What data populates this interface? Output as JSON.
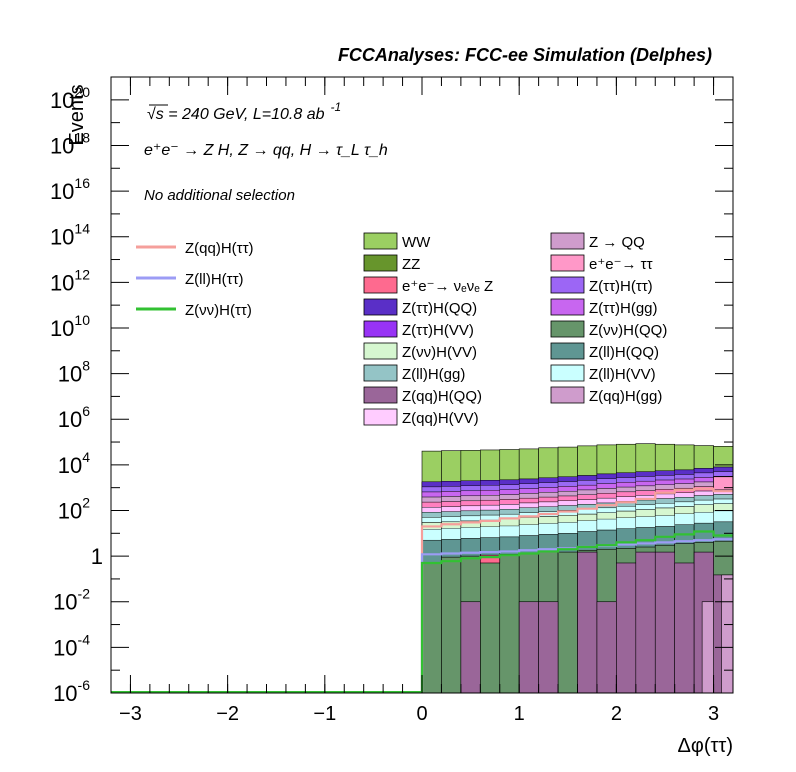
{
  "header": {
    "title": "FCCAnalyses: FCC-ee Simulation (Delphes)",
    "line_energy": "√s = 240 GeV, L=10.8 ab",
    "line_energy_exp": "-1",
    "line_process": "e⁺e⁻ → Z H, Z → qq, H → τ_L τ_h",
    "line_selection": "No additional selection"
  },
  "chart_data": {
    "type": "area",
    "xlabel": "Δφ(ττ)",
    "ylabel": "Events",
    "xlim": [
      -3.2,
      3.2
    ],
    "ylim": [
      1e-06,
      1e+21
    ],
    "yscale": "log",
    "x_ticks": [
      {
        "v": -3,
        "label": "−3"
      },
      {
        "v": -2,
        "label": "−2"
      },
      {
        "v": -1,
        "label": "−1"
      },
      {
        "v": 0,
        "label": "0"
      },
      {
        "v": 1,
        "label": "1"
      },
      {
        "v": 2,
        "label": "2"
      },
      {
        "v": 3,
        "label": "3"
      }
    ],
    "y_ticks": [
      {
        "exp": -6,
        "base": "10",
        "sup": "-6"
      },
      {
        "exp": -4,
        "base": "10",
        "sup": "-4"
      },
      {
        "exp": -2,
        "base": "10",
        "sup": "-2"
      },
      {
        "exp": 0,
        "base": "1",
        "sup": ""
      },
      {
        "exp": 2,
        "base": "10",
        "sup": "2"
      },
      {
        "exp": 4,
        "base": "10",
        "sup": "4"
      },
      {
        "exp": 6,
        "base": "10",
        "sup": "6"
      },
      {
        "exp": 8,
        "base": "10",
        "sup": "8"
      },
      {
        "exp": 10,
        "base": "10",
        "sup": "10"
      },
      {
        "exp": 12,
        "base": "10",
        "sup": "12"
      },
      {
        "exp": 14,
        "base": "10",
        "sup": "14"
      },
      {
        "exp": 16,
        "base": "10",
        "sup": "16"
      },
      {
        "exp": 18,
        "base": "10",
        "sup": "18"
      },
      {
        "exp": 20,
        "base": "10",
        "sup": "20"
      }
    ],
    "bin_edges": [
      0,
      0.2,
      0.4,
      0.6,
      0.8,
      1.0,
      1.2,
      1.4,
      1.6,
      1.8,
      2.0,
      2.2,
      2.4,
      2.6,
      2.8,
      3.0,
      3.2
    ],
    "stack_levels": [
      {
        "name": "Z(vv)H(QQ)",
        "color": "#66956a",
        "values": [
          0.5,
          0.9,
          1.0,
          1.0,
          1.2,
          1.3,
          1.5,
          1.5,
          1.8,
          2.0,
          2.2,
          2.5,
          3.0,
          3.5,
          4.0,
          4.5
        ]
      },
      {
        "name": "WW",
        "color": "#9bcf62",
        "values": [
          40000,
          42000,
          43000,
          45000,
          47000,
          50000,
          56000,
          60000,
          68000,
          75000,
          80000,
          85000,
          80000,
          75000,
          70000,
          65000
        ]
      },
      {
        "name": "ZZ",
        "color": "#67952c",
        "values": [
          1800,
          1900,
          2000,
          2100,
          2200,
          2400,
          2700,
          3000,
          3400,
          4000,
          4500,
          5000,
          5500,
          6000,
          7000,
          8000
        ]
      },
      {
        "name": "Z(vv)H(VV)",
        "color": "#d6f7d0",
        "values": [
          30,
          32,
          35,
          38,
          42,
          50,
          55,
          62,
          70,
          80,
          95,
          110,
          130,
          150,
          180,
          200
        ]
      },
      {
        "name": "Z(ll)H(QQ)",
        "color": "#5f9693",
        "values": [
          5,
          5.5,
          6,
          6.5,
          7,
          8,
          9,
          10,
          12,
          14,
          16,
          18,
          20,
          24,
          28,
          32
        ]
      }
    ],
    "lines": [
      {
        "name": "Z(qq)H(ττ)",
        "color": "#f59f9b",
        "values": [
          20,
          25,
          30,
          35,
          45,
          55,
          70,
          90,
          120,
          170,
          230,
          320,
          600,
          800,
          900,
          700
        ]
      },
      {
        "name": "Z(ll)H(ττ)",
        "color": "#9c9cf5",
        "values": [
          1.2,
          1.3,
          1.4,
          1.5,
          1.6,
          1.8,
          2.0,
          2.2,
          2.5,
          2.8,
          3.2,
          3.6,
          4.0,
          4.5,
          5.0,
          5.5
        ]
      },
      {
        "name": "Z(νν)H(ττ)",
        "color": "#32c132",
        "values": [
          0.5,
          0.6,
          0.8,
          0.9,
          1.1,
          1.3,
          1.6,
          2.0,
          2.5,
          3.0,
          4.0,
          5.0,
          7.0,
          9.0,
          12.0,
          8.0
        ]
      }
    ],
    "zqqhqq_bars": [
      0,
      0,
      0.01,
      0,
      0,
      0.01,
      0.01,
      0,
      1.5,
      0.01,
      0.5,
      1.5,
      1.5,
      0.5,
      1.5,
      0.15
    ],
    "zqqhgg_bars": [
      0,
      0,
      0,
      0,
      0,
      0,
      0,
      0,
      0,
      0,
      0,
      0,
      0,
      0,
      0.01,
      0.15
    ],
    "ee_tautau_bars": [
      0,
      0,
      0,
      0,
      0,
      0,
      0,
      0,
      0,
      0,
      0,
      0,
      0,
      0,
      0,
      3000
    ],
    "nunu_z_marks": [
      0,
      0,
      0,
      0.5,
      0,
      0,
      0,
      0,
      0,
      0,
      0,
      0,
      0,
      0,
      0,
      0
    ],
    "band_colors": [
      "#5a2fc7",
      "#9a6af5",
      "#c866f0",
      "#cfa0cf",
      "#ff7fbf",
      "#ffc0ff",
      "#94c4c6",
      "#caffff"
    ],
    "legend_lines": [
      {
        "label": "Z(qq)H(ττ)",
        "color": "#f59f9b"
      },
      {
        "label": "Z(ll)H(ττ)",
        "color": "#9c9cf5"
      },
      {
        "label": "Z(νν)H(ττ)",
        "color": "#32c132"
      }
    ],
    "legend_boxes": [
      {
        "label": "WW",
        "color": "#9bcf62"
      },
      {
        "label": "Z → QQ",
        "color": "#cf9ccc"
      },
      {
        "label": "ZZ",
        "color": "#67952c"
      },
      {
        "label": "e⁺e⁻→ ττ",
        "color": "#ff98c8"
      },
      {
        "label": "e⁺e⁻→ νₑνₑ Z",
        "color": "#fe6a8f"
      },
      {
        "label": "Z(ττ)H(ττ)",
        "color": "#9c66f5"
      },
      {
        "label": "Z(ττ)H(QQ)",
        "color": "#5a2fc7"
      },
      {
        "label": "Z(ττ)H(gg)",
        "color": "#c866f0"
      },
      {
        "label": "Z(ττ)H(VV)",
        "color": "#9833f5"
      },
      {
        "label": "Z(νν)H(QQ)",
        "color": "#66956a"
      },
      {
        "label": "Z(νν)H(VV)",
        "color": "#d6f7d0"
      },
      {
        "label": "Z(ll)H(QQ)",
        "color": "#5f9693"
      },
      {
        "label": "Z(ll)H(gg)",
        "color": "#94c4c6"
      },
      {
        "label": "Z(ll)H(VV)",
        "color": "#caffff"
      },
      {
        "label": "Z(qq)H(QQ)",
        "color": "#9a6699"
      },
      {
        "label": "Z(qq)H(gg)",
        "color": "#cf9ccc"
      },
      {
        "label": "Z(qq)H(VV)",
        "color": "#ffccff"
      }
    ]
  }
}
